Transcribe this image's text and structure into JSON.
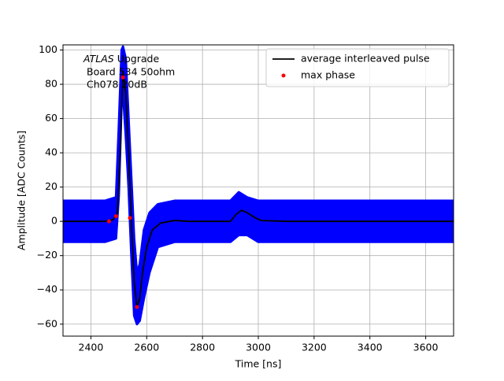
{
  "chart_data": {
    "type": "line",
    "xlabel": "Time [ns]",
    "ylabel": "Amplitude [ADC Counts]",
    "annotation": {
      "experiment": "ATLAS",
      "label": "Upgrade",
      "lines": [
        "Board 534 50ohm",
        "Ch078 20dB"
      ]
    },
    "xlim": [
      2300,
      3700
    ],
    "ylim": [
      -67,
      103
    ],
    "xticks": [
      2400,
      2600,
      2800,
      3000,
      3200,
      3400,
      3600
    ],
    "yticks": [
      {
        "value": -60,
        "label": "−60"
      },
      {
        "value": -40,
        "label": "−40"
      },
      {
        "value": -20,
        "label": "−20"
      },
      0,
      20,
      40,
      60,
      80,
      100
    ],
    "grid": true,
    "legend": "upper right",
    "band": {
      "color": "#0000ff",
      "x": [
        2300,
        2450,
        2490,
        2500,
        2510,
        2515,
        2525,
        2535,
        2545,
        2555,
        2565,
        2575,
        2590,
        2610,
        2640,
        2700,
        2900,
        2930,
        2960,
        3000,
        3050,
        3700
      ],
      "upper": [
        12,
        12,
        14,
        55,
        100,
        102,
        95,
        60,
        25,
        -10,
        -30,
        -25,
        -5,
        5,
        10,
        12,
        12,
        17,
        14,
        12,
        12,
        12
      ],
      "lower": [
        -12,
        -12,
        -10,
        15,
        70,
        75,
        50,
        20,
        -20,
        -55,
        -60,
        -58,
        -45,
        -30,
        -15,
        -12,
        -12,
        -8,
        -8,
        -12,
        -12,
        -12
      ]
    },
    "series": [
      {
        "name": "average interleaved pulse",
        "color": "#000000",
        "kind": "line",
        "x": [
          2300,
          2450,
          2480,
          2495,
          2505,
          2515,
          2525,
          2535,
          2545,
          2555,
          2565,
          2575,
          2585,
          2600,
          2620,
          2650,
          2700,
          2750,
          2900,
          2920,
          2940,
          2960,
          2990,
          3010,
          3100,
          3700
        ],
        "values": [
          0,
          0,
          1,
          5,
          40,
          88,
          75,
          40,
          0,
          -35,
          -50,
          -45,
          -30,
          -15,
          -5,
          -1,
          0.5,
          0,
          0,
          4,
          6.5,
          5,
          2,
          0.5,
          0,
          0
        ]
      },
      {
        "name": "max phase",
        "color": "#ff0000",
        "kind": "scatter",
        "x": [
          2465,
          2490,
          2515,
          2540,
          2565
        ],
        "values": [
          0,
          3,
          84,
          2,
          -50
        ]
      }
    ]
  }
}
